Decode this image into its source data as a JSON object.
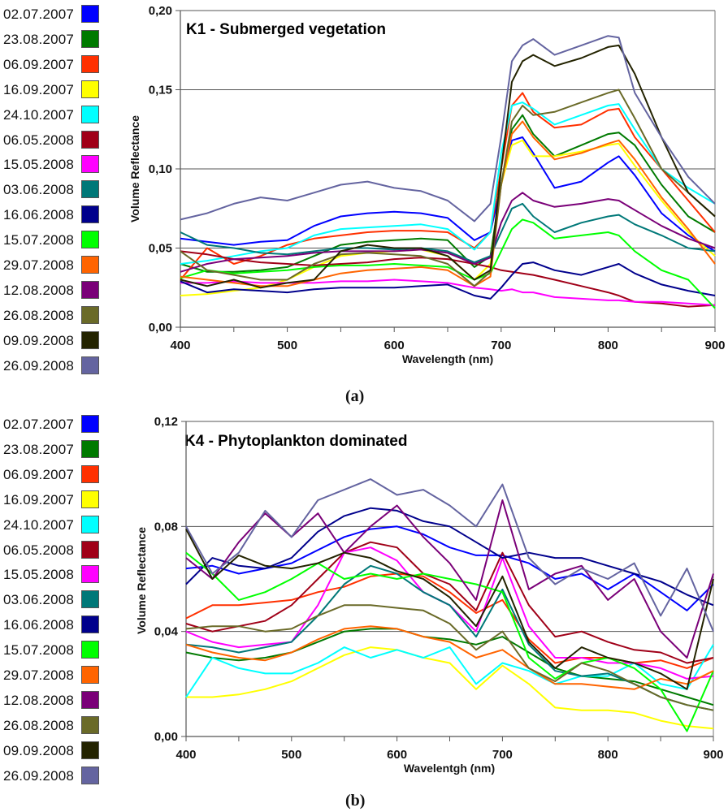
{
  "legend": {
    "items": [
      {
        "label": "02.07.2007",
        "color": "#0000ff"
      },
      {
        "label": "23.08.2007",
        "color": "#007a00"
      },
      {
        "label": "06.09.2007",
        "color": "#ff3000"
      },
      {
        "label": "16.09.2007",
        "color": "#ffff00"
      },
      {
        "label": "24.10.2007",
        "color": "#00ffff"
      },
      {
        "label": "06.05.2008",
        "color": "#a00018"
      },
      {
        "label": "15.05.2008",
        "color": "#ff00ff"
      },
      {
        "label": "03.06.2008",
        "color": "#007878"
      },
      {
        "label": "16.06.2008",
        "color": "#00008c"
      },
      {
        "label": "15.07.2008",
        "color": "#00ff00"
      },
      {
        "label": "29.07.2008",
        "color": "#ff6400"
      },
      {
        "label": "12.08.2008",
        "color": "#7a0078"
      },
      {
        "label": "26.08.2008",
        "color": "#6a6a28"
      },
      {
        "label": "09.09.2008",
        "color": "#232300"
      },
      {
        "label": "26.09.2008",
        "color": "#6464a0"
      }
    ]
  },
  "captions": {
    "a": "(a)",
    "b": "(b)"
  },
  "chart_data": [
    {
      "type": "line",
      "title": "K1 - Submerged vegetation",
      "xlabel": "Wavelength (nm)",
      "ylabel": "Volume Reflectance",
      "xlim": [
        400,
        900
      ],
      "ylim": [
        0,
        0.2
      ],
      "xticks": [
        400,
        500,
        600,
        700,
        800,
        900
      ],
      "yticks": [
        0.0,
        0.05,
        0.1,
        0.15,
        0.2
      ],
      "ytick_labels": [
        "0,00",
        "0,05",
        "0,10",
        "0,15",
        "0,20"
      ],
      "grid": "horizontal",
      "x": [
        400,
        425,
        450,
        475,
        500,
        525,
        550,
        575,
        600,
        625,
        650,
        675,
        690,
        700,
        710,
        720,
        730,
        750,
        775,
        800,
        810,
        825,
        850,
        875,
        900
      ],
      "series": [
        {
          "name": "02.07.2007",
          "color": "#0000ff",
          "values": [
            0.056,
            0.054,
            0.052,
            0.054,
            0.055,
            0.064,
            0.07,
            0.072,
            0.073,
            0.072,
            0.069,
            0.055,
            0.06,
            0.09,
            0.118,
            0.12,
            0.11,
            0.088,
            0.092,
            0.104,
            0.108,
            0.096,
            0.072,
            0.058,
            0.048
          ]
        },
        {
          "name": "23.08.2007",
          "color": "#007a00",
          "values": [
            0.04,
            0.035,
            0.035,
            0.036,
            0.038,
            0.045,
            0.052,
            0.054,
            0.055,
            0.056,
            0.055,
            0.038,
            0.045,
            0.09,
            0.125,
            0.134,
            0.122,
            0.108,
            0.115,
            0.122,
            0.123,
            0.115,
            0.09,
            0.07,
            0.06
          ]
        },
        {
          "name": "06.09.2007",
          "color": "#ff3000",
          "values": [
            0.03,
            0.05,
            0.04,
            0.045,
            0.052,
            0.056,
            0.058,
            0.06,
            0.061,
            0.061,
            0.06,
            0.05,
            0.06,
            0.1,
            0.14,
            0.148,
            0.136,
            0.126,
            0.128,
            0.137,
            0.138,
            0.12,
            0.1,
            0.08,
            0.06
          ]
        },
        {
          "name": "16.09.2007",
          "color": "#ffff00",
          "values": [
            0.02,
            0.021,
            0.023,
            0.025,
            0.03,
            0.038,
            0.045,
            0.047,
            0.048,
            0.049,
            0.045,
            0.03,
            0.04,
            0.09,
            0.115,
            0.118,
            0.108,
            0.108,
            0.111,
            0.115,
            0.116,
            0.102,
            0.08,
            0.06,
            0.045
          ]
        },
        {
          "name": "24.10.2007",
          "color": "#00ffff",
          "values": [
            0.04,
            0.042,
            0.045,
            0.048,
            0.05,
            0.058,
            0.062,
            0.063,
            0.064,
            0.065,
            0.062,
            0.049,
            0.06,
            0.11,
            0.14,
            0.142,
            0.138,
            0.128,
            0.134,
            0.14,
            0.141,
            0.125,
            0.1,
            0.088,
            0.078
          ]
        },
        {
          "name": "06.05.2008",
          "color": "#a00018",
          "values": [
            0.048,
            0.046,
            0.043,
            0.041,
            0.04,
            0.039,
            0.04,
            0.041,
            0.043,
            0.044,
            0.043,
            0.04,
            0.038,
            0.036,
            0.035,
            0.034,
            0.033,
            0.03,
            0.026,
            0.022,
            0.02,
            0.016,
            0.015,
            0.013,
            0.014
          ]
        },
        {
          "name": "15.05.2008",
          "color": "#ff00ff",
          "values": [
            0.028,
            0.028,
            0.029,
            0.028,
            0.028,
            0.028,
            0.029,
            0.029,
            0.03,
            0.029,
            0.028,
            0.025,
            0.024,
            0.023,
            0.024,
            0.022,
            0.022,
            0.019,
            0.018,
            0.017,
            0.017,
            0.016,
            0.016,
            0.015,
            0.014
          ]
        },
        {
          "name": "03.06.2008",
          "color": "#007878",
          "values": [
            0.06,
            0.052,
            0.05,
            0.047,
            0.046,
            0.048,
            0.05,
            0.05,
            0.049,
            0.05,
            0.048,
            0.041,
            0.045,
            0.06,
            0.075,
            0.078,
            0.07,
            0.06,
            0.066,
            0.07,
            0.071,
            0.065,
            0.058,
            0.05,
            0.048
          ]
        },
        {
          "name": "16.06.2008",
          "color": "#00008c",
          "values": [
            0.029,
            0.022,
            0.024,
            0.023,
            0.022,
            0.024,
            0.025,
            0.025,
            0.025,
            0.026,
            0.027,
            0.02,
            0.018,
            0.025,
            0.033,
            0.04,
            0.041,
            0.036,
            0.033,
            0.038,
            0.04,
            0.034,
            0.027,
            0.023,
            0.02
          ]
        },
        {
          "name": "15.07.2008",
          "color": "#00ff00",
          "values": [
            0.031,
            0.036,
            0.034,
            0.035,
            0.036,
            0.038,
            0.039,
            0.039,
            0.04,
            0.039,
            0.038,
            0.03,
            0.034,
            0.048,
            0.062,
            0.068,
            0.066,
            0.056,
            0.058,
            0.06,
            0.058,
            0.048,
            0.036,
            0.03,
            0.012
          ]
        },
        {
          "name": "29.07.2008",
          "color": "#ff6400",
          "values": [
            0.032,
            0.03,
            0.028,
            0.026,
            0.026,
            0.03,
            0.034,
            0.036,
            0.037,
            0.038,
            0.036,
            0.026,
            0.032,
            0.09,
            0.122,
            0.13,
            0.12,
            0.106,
            0.11,
            0.116,
            0.118,
            0.106,
            0.082,
            0.062,
            0.04
          ]
        },
        {
          "name": "12.08.2008",
          "color": "#7a0078",
          "values": [
            0.035,
            0.04,
            0.043,
            0.044,
            0.045,
            0.047,
            0.048,
            0.048,
            0.048,
            0.049,
            0.047,
            0.04,
            0.044,
            0.066,
            0.08,
            0.085,
            0.08,
            0.076,
            0.078,
            0.081,
            0.08,
            0.074,
            0.064,
            0.056,
            0.05
          ]
        },
        {
          "name": "26.08.2008",
          "color": "#6a6a28",
          "values": [
            0.048,
            0.036,
            0.033,
            0.03,
            0.03,
            0.04,
            0.046,
            0.047,
            0.046,
            0.045,
            0.04,
            0.026,
            0.035,
            0.09,
            0.13,
            0.14,
            0.134,
            0.136,
            0.142,
            0.148,
            0.15,
            0.132,
            0.1,
            0.085,
            0.07
          ]
        },
        {
          "name": "09.09.2008",
          "color": "#232300",
          "values": [
            0.03,
            0.026,
            0.03,
            0.025,
            0.028,
            0.03,
            0.048,
            0.052,
            0.05,
            0.05,
            0.045,
            0.03,
            0.036,
            0.1,
            0.155,
            0.168,
            0.172,
            0.165,
            0.17,
            0.177,
            0.178,
            0.16,
            0.12,
            0.085,
            0.07
          ]
        },
        {
          "name": "26.09.2008",
          "color": "#6464a0",
          "values": [
            0.068,
            0.072,
            0.078,
            0.082,
            0.08,
            0.085,
            0.09,
            0.092,
            0.088,
            0.086,
            0.08,
            0.067,
            0.078,
            0.12,
            0.168,
            0.178,
            0.182,
            0.172,
            0.178,
            0.184,
            0.183,
            0.148,
            0.12,
            0.095,
            0.078
          ]
        }
      ]
    },
    {
      "type": "line",
      "title": "K4 - Phytoplankton dominated",
      "xlabel": "Wavelentgh (nm)",
      "ylabel": "Volume Reflectance",
      "xlim": [
        400,
        900
      ],
      "ylim": [
        0,
        0.12
      ],
      "xticks": [
        400,
        500,
        600,
        700,
        800,
        900
      ],
      "yticks": [
        0.0,
        0.04,
        0.08,
        0.12
      ],
      "ytick_labels": [
        "0,00",
        "0,04",
        "0,08",
        "0,12"
      ],
      "grid": "horizontal",
      "x": [
        400,
        425,
        450,
        475,
        500,
        525,
        550,
        575,
        600,
        625,
        650,
        675,
        700,
        725,
        750,
        775,
        800,
        825,
        850,
        875,
        900
      ],
      "series": [
        {
          "name": "02.07.2007",
          "color": "#0000ff",
          "values": [
            0.064,
            0.065,
            0.062,
            0.064,
            0.066,
            0.071,
            0.076,
            0.079,
            0.08,
            0.077,
            0.072,
            0.069,
            0.069,
            0.066,
            0.06,
            0.062,
            0.056,
            0.062,
            0.055,
            0.048,
            0.058
          ]
        },
        {
          "name": "23.08.2007",
          "color": "#007a00",
          "values": [
            0.032,
            0.03,
            0.029,
            0.03,
            0.032,
            0.036,
            0.04,
            0.041,
            0.041,
            0.038,
            0.037,
            0.035,
            0.038,
            0.032,
            0.026,
            0.023,
            0.022,
            0.021,
            0.018,
            0.015,
            0.012
          ]
        },
        {
          "name": "06.09.2007",
          "color": "#ff3000",
          "values": [
            0.045,
            0.05,
            0.05,
            0.051,
            0.052,
            0.055,
            0.057,
            0.061,
            0.062,
            0.061,
            0.055,
            0.047,
            0.052,
            0.037,
            0.028,
            0.03,
            0.03,
            0.028,
            0.029,
            0.026,
            0.03
          ]
        },
        {
          "name": "16.09.2007",
          "color": "#ffff00",
          "values": [
            0.015,
            0.015,
            0.016,
            0.018,
            0.021,
            0.026,
            0.031,
            0.034,
            0.033,
            0.03,
            0.028,
            0.018,
            0.027,
            0.02,
            0.011,
            0.01,
            0.01,
            0.009,
            0.006,
            0.004,
            0.003
          ]
        },
        {
          "name": "24.10.2007",
          "color": "#00ffff",
          "values": [
            0.015,
            0.03,
            0.026,
            0.024,
            0.024,
            0.028,
            0.034,
            0.03,
            0.033,
            0.03,
            0.034,
            0.02,
            0.028,
            0.025,
            0.02,
            0.023,
            0.023,
            0.028,
            0.02,
            0.018,
            0.035
          ]
        },
        {
          "name": "06.05.2008",
          "color": "#a00018",
          "values": [
            0.043,
            0.04,
            0.042,
            0.044,
            0.05,
            0.06,
            0.07,
            0.074,
            0.072,
            0.062,
            0.058,
            0.048,
            0.07,
            0.05,
            0.038,
            0.04,
            0.036,
            0.033,
            0.032,
            0.028,
            0.03
          ]
        },
        {
          "name": "15.05.2008",
          "color": "#ff00ff",
          "values": [
            0.04,
            0.036,
            0.034,
            0.035,
            0.036,
            0.05,
            0.07,
            0.072,
            0.067,
            0.055,
            0.05,
            0.04,
            0.068,
            0.042,
            0.03,
            0.03,
            0.028,
            0.028,
            0.026,
            0.022,
            0.023
          ]
        },
        {
          "name": "03.06.2008",
          "color": "#007878",
          "values": [
            0.035,
            0.034,
            0.032,
            0.034,
            0.036,
            0.046,
            0.058,
            0.065,
            0.062,
            0.055,
            0.05,
            0.038,
            0.056,
            0.035,
            0.025,
            0.023,
            0.024,
            0.02,
            0.015,
            0.012,
            0.01
          ]
        },
        {
          "name": "16.06.2008",
          "color": "#00008c",
          "values": [
            0.058,
            0.068,
            0.065,
            0.064,
            0.068,
            0.078,
            0.084,
            0.087,
            0.086,
            0.082,
            0.08,
            0.074,
            0.068,
            0.07,
            0.068,
            0.068,
            0.065,
            0.062,
            0.059,
            0.054,
            0.05
          ]
        },
        {
          "name": "15.07.2008",
          "color": "#00ff00",
          "values": [
            0.07,
            0.062,
            0.052,
            0.055,
            0.06,
            0.066,
            0.06,
            0.062,
            0.06,
            0.062,
            0.06,
            0.058,
            0.055,
            0.03,
            0.022,
            0.028,
            0.03,
            0.026,
            0.018,
            0.002,
            0.025
          ]
        },
        {
          "name": "29.07.2008",
          "color": "#ff6400",
          "values": [
            0.035,
            0.032,
            0.03,
            0.029,
            0.032,
            0.037,
            0.041,
            0.042,
            0.041,
            0.038,
            0.036,
            0.03,
            0.033,
            0.026,
            0.02,
            0.02,
            0.019,
            0.018,
            0.022,
            0.02,
            0.025
          ]
        },
        {
          "name": "12.08.2008",
          "color": "#7a0078",
          "values": [
            0.068,
            0.06,
            0.074,
            0.085,
            0.076,
            0.085,
            0.07,
            0.08,
            0.088,
            0.076,
            0.066,
            0.052,
            0.09,
            0.056,
            0.062,
            0.065,
            0.052,
            0.06,
            0.04,
            0.03,
            0.062
          ]
        },
        {
          "name": "26.08.2008",
          "color": "#6a6a28",
          "values": [
            0.041,
            0.042,
            0.042,
            0.04,
            0.041,
            0.046,
            0.05,
            0.05,
            0.049,
            0.048,
            0.043,
            0.033,
            0.04,
            0.026,
            0.021,
            0.028,
            0.025,
            0.02,
            0.015,
            0.012,
            0.01
          ]
        },
        {
          "name": "09.09.2008",
          "color": "#232300",
          "values": [
            0.079,
            0.06,
            0.069,
            0.065,
            0.064,
            0.066,
            0.07,
            0.068,
            0.063,
            0.06,
            0.053,
            0.042,
            0.061,
            0.036,
            0.026,
            0.034,
            0.03,
            0.028,
            0.024,
            0.018,
            0.06
          ]
        },
        {
          "name": "26.09.2008",
          "color": "#6464a0",
          "values": [
            0.08,
            0.062,
            0.07,
            0.086,
            0.076,
            0.09,
            0.094,
            0.098,
            0.092,
            0.094,
            0.088,
            0.08,
            0.096,
            0.068,
            0.058,
            0.064,
            0.06,
            0.066,
            0.046,
            0.064,
            0.04
          ]
        }
      ]
    }
  ]
}
